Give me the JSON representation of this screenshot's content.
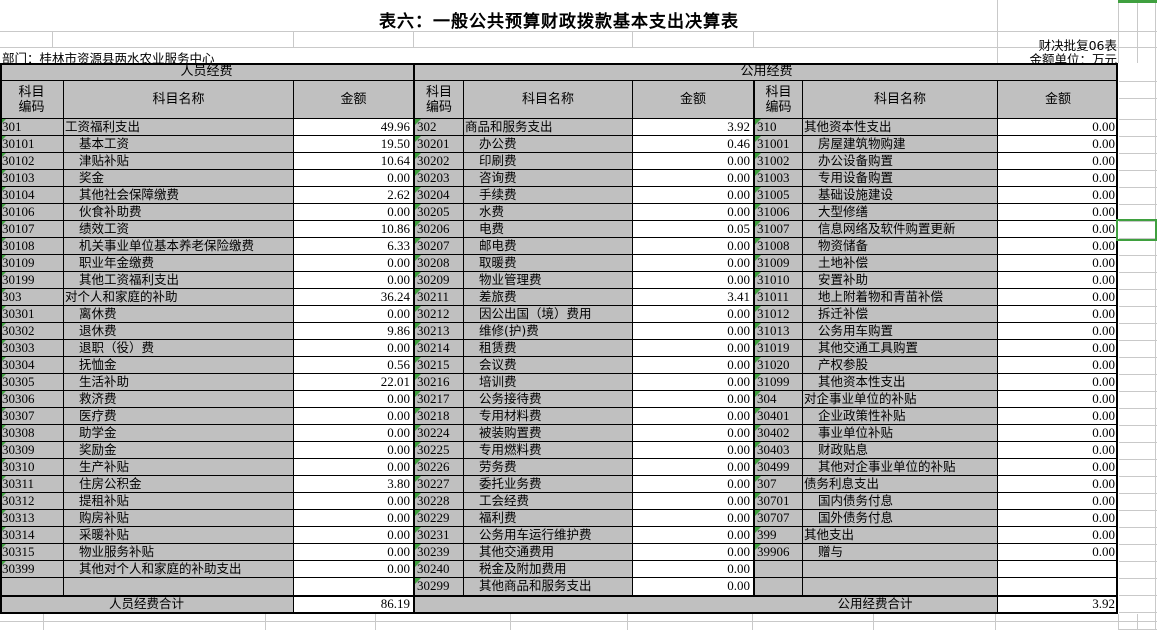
{
  "title": "表六：一般公共预算财政拨款基本支出决算表",
  "form_no": "财决批复06表",
  "department": "部门：桂林市资源县两水农业服务中心",
  "unit_note": "金额单位：万元",
  "table": {
    "group_headers": {
      "personnel": "人员经费",
      "public": "公用经费"
    },
    "col_headers": {
      "code": "科目\n编码",
      "name": "科目名称",
      "amount": "金额"
    },
    "personnel_rows": [
      [
        "301",
        "工资福利支出",
        "49.96"
      ],
      [
        "30101",
        "基本工资",
        "19.50"
      ],
      [
        "30102",
        "津贴补贴",
        "10.64"
      ],
      [
        "30103",
        "奖金",
        "0.00"
      ],
      [
        "30104",
        "其他社会保障缴费",
        "2.62"
      ],
      [
        "30106",
        "伙食补助费",
        "0.00"
      ],
      [
        "30107",
        "绩效工资",
        "10.86"
      ],
      [
        "30108",
        "机关事业单位基本养老保险缴费",
        "6.33"
      ],
      [
        "30109",
        "职业年金缴费",
        "0.00"
      ],
      [
        "30199",
        "其他工资福利支出",
        "0.00"
      ],
      [
        "303",
        "对个人和家庭的补助",
        "36.24"
      ],
      [
        "30301",
        "离休费",
        "0.00"
      ],
      [
        "30302",
        "退休费",
        "9.86"
      ],
      [
        "30303",
        "退职（役）费",
        "0.00"
      ],
      [
        "30304",
        "抚恤金",
        "0.56"
      ],
      [
        "30305",
        "生活补助",
        "22.01"
      ],
      [
        "30306",
        "救济费",
        "0.00"
      ],
      [
        "30307",
        "医疗费",
        "0.00"
      ],
      [
        "30308",
        "助学金",
        "0.00"
      ],
      [
        "30309",
        "奖励金",
        "0.00"
      ],
      [
        "30310",
        "生产补贴",
        "0.00"
      ],
      [
        "30311",
        "住房公积金",
        "3.80"
      ],
      [
        "30312",
        "提租补贴",
        "0.00"
      ],
      [
        "30313",
        "购房补贴",
        "0.00"
      ],
      [
        "30314",
        "采暖补贴",
        "0.00"
      ],
      [
        "30315",
        "物业服务补贴",
        "0.00"
      ],
      [
        "30399",
        "其他对个人和家庭的补助支出",
        "0.00"
      ],
      [
        "",
        "",
        ""
      ]
    ],
    "public_rows_a": [
      [
        "302",
        "商品和服务支出",
        "3.92"
      ],
      [
        "30201",
        "办公费",
        "0.46"
      ],
      [
        "30202",
        "印刷费",
        "0.00"
      ],
      [
        "30203",
        "咨询费",
        "0.00"
      ],
      [
        "30204",
        "手续费",
        "0.00"
      ],
      [
        "30205",
        "水费",
        "0.00"
      ],
      [
        "30206",
        "电费",
        "0.05"
      ],
      [
        "30207",
        "邮电费",
        "0.00"
      ],
      [
        "30208",
        "取暖费",
        "0.00"
      ],
      [
        "30209",
        "物业管理费",
        "0.00"
      ],
      [
        "30211",
        "差旅费",
        "3.41"
      ],
      [
        "30212",
        "因公出国（境）费用",
        "0.00"
      ],
      [
        "30213",
        "维修(护)费",
        "0.00"
      ],
      [
        "30214",
        "租赁费",
        "0.00"
      ],
      [
        "30215",
        "会议费",
        "0.00"
      ],
      [
        "30216",
        "培训费",
        "0.00"
      ],
      [
        "30217",
        "公务接待费",
        "0.00"
      ],
      [
        "30218",
        "专用材料费",
        "0.00"
      ],
      [
        "30224",
        "被装购置费",
        "0.00"
      ],
      [
        "30225",
        "专用燃料费",
        "0.00"
      ],
      [
        "30226",
        "劳务费",
        "0.00"
      ],
      [
        "30227",
        "委托业务费",
        "0.00"
      ],
      [
        "30228",
        "工会经费",
        "0.00"
      ],
      [
        "30229",
        "福利费",
        "0.00"
      ],
      [
        "30231",
        "公务用车运行维护费",
        "0.00"
      ],
      [
        "30239",
        "其他交通费用",
        "0.00"
      ],
      [
        "30240",
        "税金及附加费用",
        "0.00"
      ],
      [
        "30299",
        "其他商品和服务支出",
        "0.00"
      ]
    ],
    "public_rows_b": [
      [
        "310",
        "其他资本性支出",
        "0.00"
      ],
      [
        "31001",
        "房屋建筑物购建",
        "0.00"
      ],
      [
        "31002",
        "办公设备购置",
        "0.00"
      ],
      [
        "31003",
        "专用设备购置",
        "0.00"
      ],
      [
        "31005",
        "基础设施建设",
        "0.00"
      ],
      [
        "31006",
        "大型修缮",
        "0.00"
      ],
      [
        "31007",
        "信息网络及软件购置更新",
        "0.00"
      ],
      [
        "31008",
        "物资储备",
        "0.00"
      ],
      [
        "31009",
        "土地补偿",
        "0.00"
      ],
      [
        "31010",
        "安置补助",
        "0.00"
      ],
      [
        "31011",
        "地上附着物和青苗补偿",
        "0.00"
      ],
      [
        "31012",
        "拆迁补偿",
        "0.00"
      ],
      [
        "31013",
        "公务用车购置",
        "0.00"
      ],
      [
        "31019",
        "其他交通工具购置",
        "0.00"
      ],
      [
        "31020",
        "产权参股",
        "0.00"
      ],
      [
        "31099",
        "其他资本性支出",
        "0.00"
      ],
      [
        "304",
        "对企事业单位的补贴",
        "0.00"
      ],
      [
        "30401",
        "企业政策性补贴",
        "0.00"
      ],
      [
        "30402",
        "事业单位补贴",
        "0.00"
      ],
      [
        "30403",
        "财政贴息",
        "0.00"
      ],
      [
        "30499",
        "其他对企事业单位的补贴",
        "0.00"
      ],
      [
        "307",
        "债务利息支出",
        "0.00"
      ],
      [
        "30701",
        "国内债务付息",
        "0.00"
      ],
      [
        "30707",
        "国外债务付息",
        "0.00"
      ],
      [
        "399",
        "其他支出",
        "0.00"
      ],
      [
        "39906",
        "赠与",
        "0.00"
      ],
      [
        "",
        "",
        ""
      ],
      [
        "",
        "",
        ""
      ]
    ],
    "totals": {
      "personnel_label": "人员经费合计",
      "personnel_amount": "86.19",
      "public_label": "公用经费合计",
      "public_amount": "3.92"
    }
  },
  "colors": {
    "cell_gray": "#c0c0c0",
    "accent_green": "#3fa03f",
    "border_black": "#000000"
  }
}
